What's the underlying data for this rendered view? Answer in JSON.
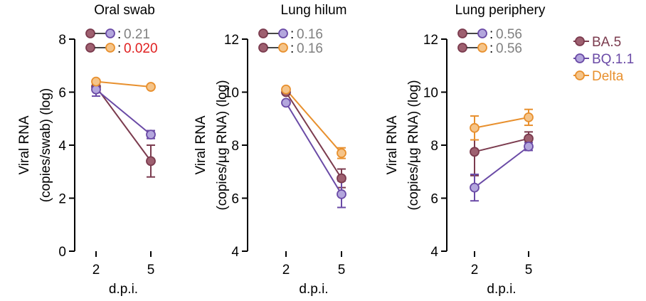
{
  "colors": {
    "BA.5": "#7b3b4e",
    "BQ.1.1": "#6a4aa6",
    "Delta": "#e8902e",
    "BA.5_fill": "#9e6070",
    "BQ.1.1_fill": "#b3a6dd",
    "Delta_fill": "#f5c489",
    "pvalue_ns": "#808080",
    "pvalue_sig": "#e02020"
  },
  "legend": {
    "placement": "right",
    "items": [
      {
        "name": "BA.5",
        "color_key": "BA.5"
      },
      {
        "name": "BQ.1.1",
        "color_key": "BQ.1.1"
      },
      {
        "name": "Delta",
        "color_key": "Delta"
      }
    ]
  },
  "chart_data": [
    {
      "type": "line",
      "title": "Oral swab",
      "xlabel": "d.p.i.",
      "ylabel_lines": [
        "Viral RNA",
        "(copies/swab) (log)"
      ],
      "x": [
        "2",
        "5"
      ],
      "ylim": [
        0,
        8
      ],
      "yticks": [
        "0",
        "2",
        "4",
        "6",
        "8"
      ],
      "series": [
        {
          "name": "BA.5",
          "values": [
            6.2,
            3.4
          ],
          "err": [
            0.1,
            0.6
          ]
        },
        {
          "name": "BQ.1.1",
          "values": [
            6.1,
            4.4
          ],
          "err": [
            0.25,
            0.15
          ]
        },
        {
          "name": "Delta",
          "values": [
            6.4,
            6.2
          ],
          "err": [
            0.05,
            0.05
          ]
        }
      ],
      "pvalues": [
        {
          "pair": [
            "BA.5",
            "BQ.1.1"
          ],
          "text": "0.21",
          "significant": false
        },
        {
          "pair": [
            "BA.5",
            "Delta"
          ],
          "text": "0.020",
          "significant": true
        }
      ]
    },
    {
      "type": "line",
      "title": "Lung hilum",
      "xlabel": "d.p.i.",
      "ylabel_lines": [
        "Viral RNA",
        "(copies/µg RNA) (log)"
      ],
      "x": [
        "2",
        "5"
      ],
      "ylim": [
        4,
        12
      ],
      "yticks": [
        "4",
        "6",
        "8",
        "10",
        "12"
      ],
      "series": [
        {
          "name": "BA.5",
          "values": [
            10.0,
            6.75
          ],
          "err": [
            0.05,
            0.35
          ]
        },
        {
          "name": "BQ.1.1",
          "values": [
            9.6,
            6.15
          ],
          "err": [
            0.05,
            0.5
          ]
        },
        {
          "name": "Delta",
          "values": [
            10.1,
            7.7
          ],
          "err": [
            0.05,
            0.2
          ]
        }
      ],
      "pvalues": [
        {
          "pair": [
            "BA.5",
            "BQ.1.1"
          ],
          "text": "0.16",
          "significant": false
        },
        {
          "pair": [
            "BA.5",
            "Delta"
          ],
          "text": "0.16",
          "significant": false
        }
      ]
    },
    {
      "type": "line",
      "title": "Lung periphery",
      "xlabel": "d.p.i.",
      "ylabel_lines": [
        "Viral RNA",
        "(copies/µg RNA) (log)"
      ],
      "x": [
        "2",
        "5"
      ],
      "ylim": [
        4,
        12
      ],
      "yticks": [
        "4",
        "6",
        "8",
        "10",
        "12"
      ],
      "series": [
        {
          "name": "BA.5",
          "values": [
            7.75,
            8.25
          ],
          "err": [
            0.9,
            0.25
          ]
        },
        {
          "name": "BQ.1.1",
          "values": [
            6.4,
            7.95
          ],
          "err": [
            0.5,
            0.15
          ]
        },
        {
          "name": "Delta",
          "values": [
            8.65,
            9.05
          ],
          "err": [
            0.45,
            0.3
          ]
        }
      ],
      "pvalues": [
        {
          "pair": [
            "BA.5",
            "BQ.1.1"
          ],
          "text": "0.56",
          "significant": false
        },
        {
          "pair": [
            "BA.5",
            "Delta"
          ],
          "text": "0.56",
          "significant": false
        }
      ]
    }
  ]
}
